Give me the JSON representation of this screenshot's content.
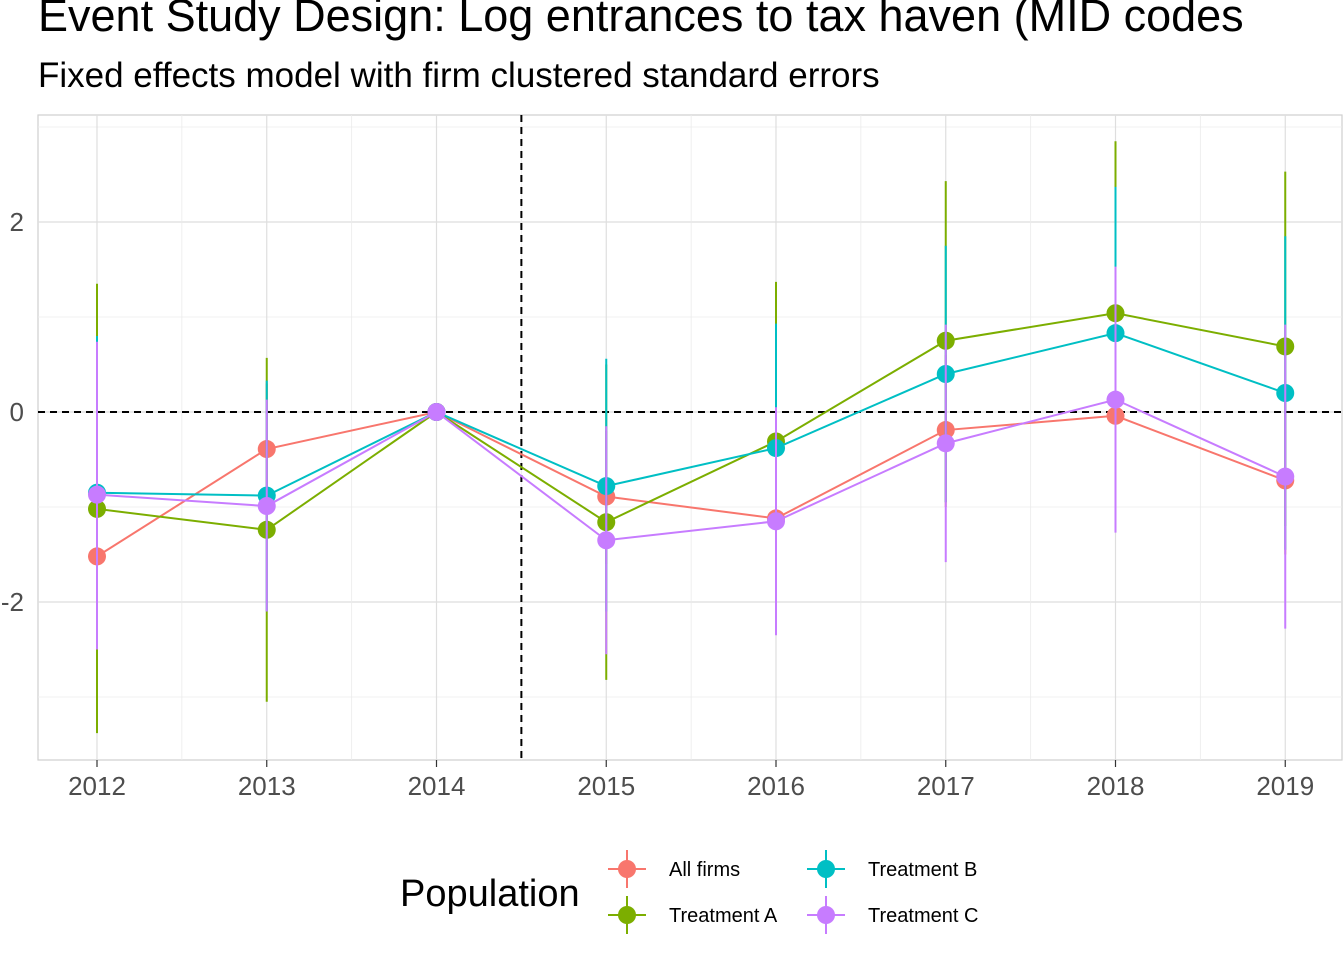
{
  "chart_data": {
    "type": "line",
    "title": "Event Study Design: Log entrances to tax haven (MID codes ",
    "subtitle": "Fixed effects model with firm clustered standard errors",
    "xlabel": "",
    "ylabel": "",
    "x": [
      "2012",
      "2013",
      "2014",
      "2015",
      "2016",
      "2017",
      "2018",
      "2019"
    ],
    "ylim": [
      -3.7,
      3.1
    ],
    "yticks": [
      -2,
      0,
      2
    ],
    "ytick_labels": [
      "-2",
      "0",
      "2"
    ],
    "reference_lines": {
      "vertical_at_x": 2014.5,
      "horizontal_at_y": 0
    },
    "grid": true,
    "legend": {
      "title": "Population",
      "position": "bottom"
    },
    "series": [
      {
        "name": "All firms",
        "color": "#F8766D",
        "values": [
          -1.52,
          -0.39,
          0.0,
          -0.89,
          -1.12,
          -0.19,
          -0.04,
          -0.72
        ],
        "lower": [
          -2.3,
          -1.2,
          0.0,
          -1.6,
          -2.0,
          -1.0,
          -0.9,
          -1.5
        ],
        "upper": [
          -0.7,
          0.3,
          0.0,
          -0.2,
          -0.3,
          0.6,
          0.8,
          0.1
        ]
      },
      {
        "name": "Treatment A",
        "color": "#7CAE00",
        "values": [
          -1.02,
          -1.24,
          0.0,
          -1.16,
          -0.31,
          0.75,
          1.04,
          0.69
        ],
        "lower": [
          -3.38,
          -3.05,
          0.0,
          -2.82,
          -2.0,
          -0.95,
          -0.8,
          -1.2
        ],
        "upper": [
          1.35,
          0.57,
          0.0,
          0.5,
          1.37,
          2.43,
          2.85,
          2.53
        ]
      },
      {
        "name": "Treatment B",
        "color": "#00BFC4",
        "values": [
          -0.85,
          -0.88,
          0.0,
          -0.78,
          -0.38,
          0.4,
          0.83,
          0.2
        ],
        "lower": [
          -2.5,
          -2.1,
          0.0,
          -2.1,
          -1.7,
          -0.95,
          -0.7,
          -1.45
        ],
        "upper": [
          0.8,
          0.33,
          0.0,
          0.56,
          0.93,
          1.75,
          2.37,
          1.85
        ]
      },
      {
        "name": "Treatment C",
        "color": "#C77CFF",
        "values": [
          -0.87,
          -0.99,
          0.0,
          -1.35,
          -1.15,
          -0.33,
          0.13,
          -0.68
        ],
        "lower": [
          -2.5,
          -2.1,
          0.0,
          -2.55,
          -2.35,
          -1.58,
          -1.27,
          -2.28
        ],
        "upper": [
          0.74,
          0.13,
          0.0,
          -0.15,
          0.05,
          0.92,
          1.53,
          0.92
        ]
      }
    ]
  }
}
